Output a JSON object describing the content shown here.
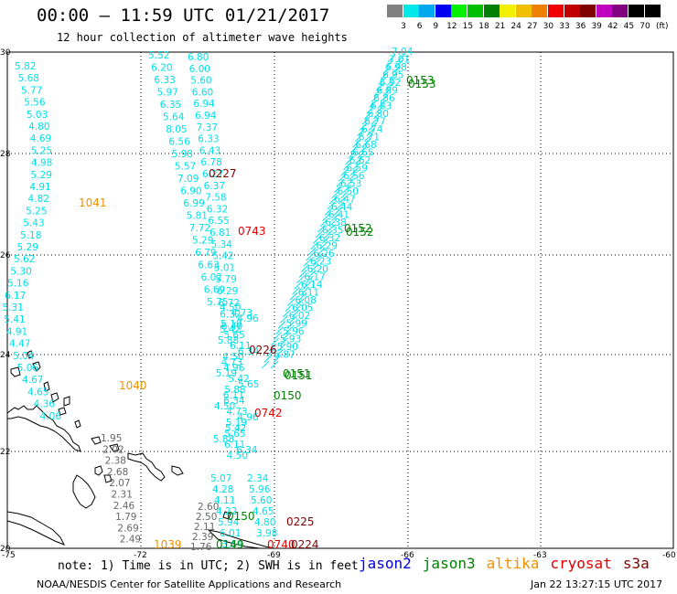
{
  "header": {
    "title": "00:00 – 11:59 UTC 01/21/2017",
    "subtitle": "12 hour collection of altimeter wave heights"
  },
  "colorbar": {
    "labels": [
      "3",
      "6",
      "9",
      "12",
      "15",
      "18",
      "21",
      "24",
      "27",
      "30",
      "33",
      "36",
      "39",
      "42",
      "45",
      "70"
    ],
    "colors": [
      "#808080",
      "#00e8e8",
      "#00a8f0",
      "#0000f0",
      "#00f000",
      "#00c000",
      "#008000",
      "#f0f000",
      "#f0c000",
      "#f08000",
      "#f00000",
      "#c00000",
      "#800000",
      "#c000c0",
      "#800080",
      "#000000",
      "#000000"
    ],
    "unit": "(ft)"
  },
  "map": {
    "lat_labels": [
      "30",
      "28",
      "26",
      "24",
      "22",
      "20"
    ],
    "lon_labels": [
      "-75",
      "-72",
      "-69",
      "-66",
      "-63",
      "-60"
    ],
    "coastline_color": "#000000"
  },
  "tracks": {
    "west_column": [
      "5.82",
      "5.68",
      "5.77",
      "5.56",
      "5.03",
      "4.80",
      "4.69",
      "5.25",
      "4.98",
      "5.29",
      "4.91",
      "4.82",
      "5.25",
      "5.43",
      "5.18",
      "5.29",
      "5.62",
      "5.30",
      "5.16",
      "6.17",
      "5.31",
      "5.41",
      "4.91",
      "4.47",
      "5.04",
      "5.06",
      "4.67",
      "4.65",
      "4.36",
      "4.06"
    ],
    "west_gray": [
      "1.95",
      "2.02",
      "2.38",
      "2.68",
      "2.07",
      "2.31",
      "2.46",
      "1.79",
      "2.69",
      "2.49"
    ],
    "center_col_a": [
      "5.52",
      "6.20",
      "6.33",
      "5.97",
      "6.35",
      "5.64",
      "8.05",
      "6.56",
      "5.98",
      "5.57",
      "7.09",
      "6.90",
      "6.99",
      "5.81",
      "7.72",
      "5.29",
      "6.79",
      "6.63",
      "6.02",
      "6.69",
      "5.75"
    ],
    "center_col_b": [
      "6.80",
      "6.00",
      "5.60",
      "6.60",
      "6.94",
      "6.94",
      "7.37",
      "6.33",
      "6.43",
      "6.78",
      "6.27",
      "6.37",
      "7.58",
      "6.32",
      "6.55",
      "6.81",
      "5.34",
      "5.42",
      "5.01",
      "5.79",
      "6.29",
      "6.72",
      "6.32",
      "6.40"
    ],
    "south_gray": [
      "2.60",
      "2.50",
      "2.11",
      "2.39",
      "1.76"
    ],
    "south_cyan": [
      "5.07",
      "4.28",
      "4.11",
      "4.22",
      "5.94",
      "6.01",
      "3.64",
      "2.34",
      "5.96",
      "5.60",
      "4.65",
      "4.80",
      "3.98"
    ]
  },
  "pass_labels": [
    {
      "text": "0153",
      "color": "#008000"
    },
    {
      "text": "0153",
      "color": "#008000"
    },
    {
      "text": "0227",
      "color": "#800000"
    },
    {
      "text": "1041",
      "color": "#f09000"
    },
    {
      "text": "0743",
      "color": "#e00000"
    },
    {
      "text": "0152",
      "color": "#008000"
    },
    {
      "text": "0152",
      "color": "#008000"
    },
    {
      "text": "0226",
      "color": "#800000"
    },
    {
      "text": "1040",
      "color": "#f09000"
    },
    {
      "text": "0151",
      "color": "#008000"
    },
    {
      "text": "0151",
      "color": "#008000"
    },
    {
      "text": "0150",
      "color": "#008000"
    },
    {
      "text": "0742",
      "color": "#e00000"
    },
    {
      "text": "0150",
      "color": "#008000"
    },
    {
      "text": "0225",
      "color": "#800000"
    },
    {
      "text": "1039",
      "color": "#f09000"
    },
    {
      "text": "0149",
      "color": "#008000"
    },
    {
      "text": "0740",
      "color": "#e00000"
    },
    {
      "text": "0224",
      "color": "#800000"
    }
  ],
  "note": "note: 1) Time is in UTC; 2) SWH is in feet",
  "legend": [
    {
      "label": "jason2",
      "color": "#0000e0"
    },
    {
      "label": "jason3",
      "color": "#008000"
    },
    {
      "label": "altika",
      "color": "#f09000"
    },
    {
      "label": "cryosat",
      "color": "#e00000"
    },
    {
      "label": "s3a",
      "color": "#800000"
    }
  ],
  "footer": {
    "left": "NOAA/NESDIS Center for Satellite Applications and Research",
    "right": "Jan 22 13:27:15 UTC 2017"
  }
}
